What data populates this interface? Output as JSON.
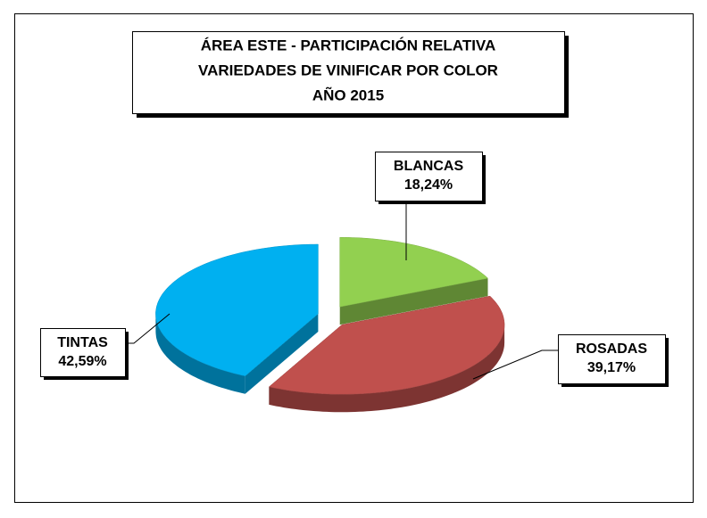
{
  "chart_data": {
    "type": "pie",
    "title": [
      "ÁREA ESTE - PARTICIPACIÓN RELATIVA",
      "VARIEDADES DE VINIFICAR POR COLOR",
      "AÑO 2015"
    ],
    "categories": [
      "BLANCAS",
      "ROSADAS",
      "TINTAS"
    ],
    "values": [
      18.24,
      39.17,
      42.59
    ],
    "value_labels": [
      "18,24%",
      "39,17%",
      "42,59%"
    ],
    "colors": [
      "#92d050",
      "#c0504d",
      "#00b0f0"
    ]
  }
}
